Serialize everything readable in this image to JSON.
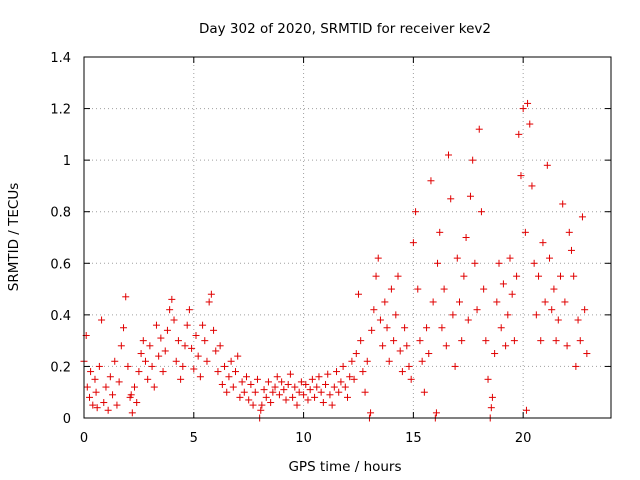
{
  "chart_data": {
    "type": "scatter",
    "title": "Day 302 of 2020, SRMTID for receiver kev2",
    "xlabel": "GPS time / hours",
    "ylabel": "SRMTID / TECUs",
    "xlim": [
      0,
      24
    ],
    "ylim": [
      0,
      1.4
    ],
    "xticks": [
      0,
      5,
      10,
      15,
      20
    ],
    "yticks": [
      0,
      0.2,
      0.4,
      0.6,
      0.8,
      1,
      1.2,
      1.4
    ],
    "xtick_labels": [
      "0",
      "5",
      "10",
      "15",
      "20"
    ],
    "ytick_labels": [
      "0",
      "0.2",
      "0.4",
      "0.6",
      "0.8",
      "1",
      "1.2",
      "1.4"
    ],
    "grid": true,
    "marker": "+",
    "color": "#e00000",
    "series": [
      {
        "name": "SRMTID",
        "points": [
          [
            0.0,
            0.22
          ],
          [
            0.1,
            0.32
          ],
          [
            0.15,
            0.12
          ],
          [
            0.25,
            0.08
          ],
          [
            0.3,
            0.18
          ],
          [
            0.4,
            0.05
          ],
          [
            0.5,
            0.15
          ],
          [
            0.55,
            0.1
          ],
          [
            0.7,
            0.2
          ],
          [
            0.8,
            0.38
          ],
          [
            0.9,
            0.06
          ],
          [
            1.0,
            0.12
          ],
          [
            1.1,
            0.03
          ],
          [
            1.2,
            0.16
          ],
          [
            1.3,
            0.09
          ],
          [
            1.4,
            0.22
          ],
          [
            1.5,
            0.05
          ],
          [
            1.6,
            0.14
          ],
          [
            1.7,
            0.28
          ],
          [
            1.8,
            0.35
          ],
          [
            1.9,
            0.47
          ],
          [
            2.0,
            0.2
          ],
          [
            2.1,
            0.08
          ],
          [
            2.2,
            0.02
          ],
          [
            2.3,
            0.12
          ],
          [
            2.4,
            0.06
          ],
          [
            2.5,
            0.18
          ],
          [
            2.6,
            0.25
          ],
          [
            2.7,
            0.3
          ],
          [
            2.8,
            0.22
          ],
          [
            2.9,
            0.15
          ],
          [
            3.0,
            0.28
          ],
          [
            3.1,
            0.2
          ],
          [
            3.2,
            0.12
          ],
          [
            3.3,
            0.36
          ],
          [
            3.4,
            0.24
          ],
          [
            3.5,
            0.31
          ],
          [
            3.6,
            0.18
          ],
          [
            3.7,
            0.26
          ],
          [
            3.8,
            0.34
          ],
          [
            3.9,
            0.42
          ],
          [
            4.0,
            0.46
          ],
          [
            4.1,
            0.38
          ],
          [
            4.2,
            0.22
          ],
          [
            4.3,
            0.3
          ],
          [
            4.4,
            0.15
          ],
          [
            4.5,
            0.2
          ],
          [
            4.6,
            0.28
          ],
          [
            4.7,
            0.36
          ],
          [
            4.8,
            0.42
          ],
          [
            4.9,
            0.27
          ],
          [
            5.0,
            0.19
          ],
          [
            5.1,
            0.32
          ],
          [
            5.2,
            0.24
          ],
          [
            5.3,
            0.16
          ],
          [
            5.4,
            0.36
          ],
          [
            5.5,
            0.3
          ],
          [
            5.6,
            0.22
          ],
          [
            5.7,
            0.45
          ],
          [
            5.8,
            0.48
          ],
          [
            5.9,
            0.34
          ],
          [
            6.0,
            0.26
          ],
          [
            6.1,
            0.18
          ],
          [
            6.2,
            0.28
          ],
          [
            6.3,
            0.13
          ],
          [
            6.4,
            0.2
          ],
          [
            6.5,
            0.1
          ],
          [
            6.6,
            0.16
          ],
          [
            6.7,
            0.22
          ],
          [
            6.8,
            0.12
          ],
          [
            6.9,
            0.18
          ],
          [
            7.0,
            0.24
          ],
          [
            7.1,
            0.08
          ],
          [
            7.2,
            0.14
          ],
          [
            7.3,
            0.1
          ],
          [
            7.4,
            0.16
          ],
          [
            7.5,
            0.07
          ],
          [
            7.6,
            0.13
          ],
          [
            7.7,
            0.05
          ],
          [
            7.8,
            0.1
          ],
          [
            7.9,
            0.15
          ],
          [
            8.0,
            0.0
          ],
          [
            8.1,
            0.05
          ],
          [
            8.2,
            0.11
          ],
          [
            8.3,
            0.08
          ],
          [
            8.4,
            0.14
          ],
          [
            8.5,
            0.06
          ],
          [
            8.6,
            0.1
          ],
          [
            8.7,
            0.12
          ],
          [
            8.8,
            0.16
          ],
          [
            8.9,
            0.09
          ],
          [
            9.0,
            0.14
          ],
          [
            9.1,
            0.11
          ],
          [
            9.2,
            0.07
          ],
          [
            9.3,
            0.13
          ],
          [
            9.4,
            0.17
          ],
          [
            9.5,
            0.08
          ],
          [
            9.6,
            0.12
          ],
          [
            9.7,
            0.05
          ],
          [
            9.8,
            0.1
          ],
          [
            9.9,
            0.14
          ],
          [
            10.0,
            0.09
          ],
          [
            10.1,
            0.13
          ],
          [
            10.2,
            0.07
          ],
          [
            10.3,
            0.11
          ],
          [
            10.4,
            0.15
          ],
          [
            10.5,
            0.08
          ],
          [
            10.6,
            0.12
          ],
          [
            10.7,
            0.16
          ],
          [
            10.8,
            0.1
          ],
          [
            10.9,
            0.06
          ],
          [
            11.0,
            0.13
          ],
          [
            11.1,
            0.17
          ],
          [
            11.2,
            0.09
          ],
          [
            11.3,
            0.05
          ],
          [
            11.4,
            0.12
          ],
          [
            11.5,
            0.18
          ],
          [
            11.6,
            0.1
          ],
          [
            11.7,
            0.14
          ],
          [
            11.8,
            0.2
          ],
          [
            11.9,
            0.12
          ],
          [
            12.0,
            0.08
          ],
          [
            12.1,
            0.16
          ],
          [
            12.2,
            0.22
          ],
          [
            12.3,
            0.15
          ],
          [
            12.4,
            0.25
          ],
          [
            12.5,
            0.48
          ],
          [
            12.6,
            0.3
          ],
          [
            12.7,
            0.18
          ],
          [
            12.8,
            0.1
          ],
          [
            12.9,
            0.22
          ],
          [
            13.0,
            0.0
          ],
          [
            13.1,
            0.34
          ],
          [
            13.2,
            0.42
          ],
          [
            13.3,
            0.55
          ],
          [
            13.4,
            0.62
          ],
          [
            13.5,
            0.38
          ],
          [
            13.6,
            0.28
          ],
          [
            13.7,
            0.45
          ],
          [
            13.8,
            0.35
          ],
          [
            13.9,
            0.22
          ],
          [
            14.0,
            0.5
          ],
          [
            14.1,
            0.3
          ],
          [
            14.2,
            0.4
          ],
          [
            14.3,
            0.55
          ],
          [
            14.4,
            0.26
          ],
          [
            14.5,
            0.18
          ],
          [
            14.6,
            0.35
          ],
          [
            14.7,
            0.28
          ],
          [
            14.8,
            0.2
          ],
          [
            14.9,
            0.15
          ],
          [
            15.0,
            0.68
          ],
          [
            15.1,
            0.8
          ],
          [
            15.2,
            0.5
          ],
          [
            15.3,
            0.3
          ],
          [
            15.4,
            0.22
          ],
          [
            15.5,
            0.1
          ],
          [
            15.6,
            0.35
          ],
          [
            15.7,
            0.25
          ],
          [
            15.8,
            0.92
          ],
          [
            15.9,
            0.45
          ],
          [
            16.0,
            0.0
          ],
          [
            16.1,
            0.6
          ],
          [
            16.2,
            0.72
          ],
          [
            16.3,
            0.35
          ],
          [
            16.4,
            0.5
          ],
          [
            16.5,
            0.28
          ],
          [
            16.6,
            1.02
          ],
          [
            16.7,
            0.85
          ],
          [
            16.8,
            0.4
          ],
          [
            16.9,
            0.2
          ],
          [
            17.0,
            0.62
          ],
          [
            17.1,
            0.45
          ],
          [
            17.2,
            0.3
          ],
          [
            17.3,
            0.55
          ],
          [
            17.4,
            0.7
          ],
          [
            17.5,
            0.38
          ],
          [
            17.6,
            0.86
          ],
          [
            17.7,
            1.0
          ],
          [
            17.8,
            0.6
          ],
          [
            17.9,
            0.42
          ],
          [
            18.0,
            1.12
          ],
          [
            18.1,
            0.8
          ],
          [
            18.2,
            0.5
          ],
          [
            18.3,
            0.3
          ],
          [
            18.4,
            0.15
          ],
          [
            18.5,
            0.0
          ],
          [
            18.6,
            0.08
          ],
          [
            18.7,
            0.25
          ],
          [
            18.8,
            0.45
          ],
          [
            18.9,
            0.6
          ],
          [
            19.0,
            0.35
          ],
          [
            19.1,
            0.52
          ],
          [
            19.2,
            0.28
          ],
          [
            19.3,
            0.4
          ],
          [
            19.4,
            0.62
          ],
          [
            19.5,
            0.48
          ],
          [
            19.6,
            0.3
          ],
          [
            19.7,
            0.55
          ],
          [
            19.8,
            1.1
          ],
          [
            19.9,
            0.94
          ],
          [
            20.0,
            1.2
          ],
          [
            20.1,
            0.72
          ],
          [
            20.2,
            1.22
          ],
          [
            20.3,
            1.14
          ],
          [
            20.4,
            0.9
          ],
          [
            20.5,
            0.6
          ],
          [
            20.6,
            0.4
          ],
          [
            20.7,
            0.55
          ],
          [
            20.8,
            0.3
          ],
          [
            20.9,
            0.68
          ],
          [
            21.0,
            0.45
          ],
          [
            21.1,
            0.98
          ],
          [
            21.2,
            0.62
          ],
          [
            21.3,
            0.42
          ],
          [
            21.4,
            0.5
          ],
          [
            21.5,
            0.3
          ],
          [
            21.6,
            0.38
          ],
          [
            21.7,
            0.55
          ],
          [
            21.8,
            0.83
          ],
          [
            21.9,
            0.45
          ],
          [
            22.0,
            0.28
          ],
          [
            22.1,
            0.72
          ],
          [
            22.2,
            0.65
          ],
          [
            22.3,
            0.55
          ],
          [
            22.4,
            0.2
          ],
          [
            22.5,
            0.38
          ],
          [
            22.6,
            0.3
          ],
          [
            22.7,
            0.78
          ],
          [
            22.8,
            0.42
          ],
          [
            22.9,
            0.25
          ],
          [
            20.15,
            0.03
          ],
          [
            0.6,
            0.04
          ],
          [
            2.15,
            0.09
          ],
          [
            8.05,
            0.03
          ],
          [
            13.05,
            0.02
          ],
          [
            16.05,
            0.02
          ],
          [
            18.55,
            0.04
          ]
        ]
      }
    ]
  }
}
